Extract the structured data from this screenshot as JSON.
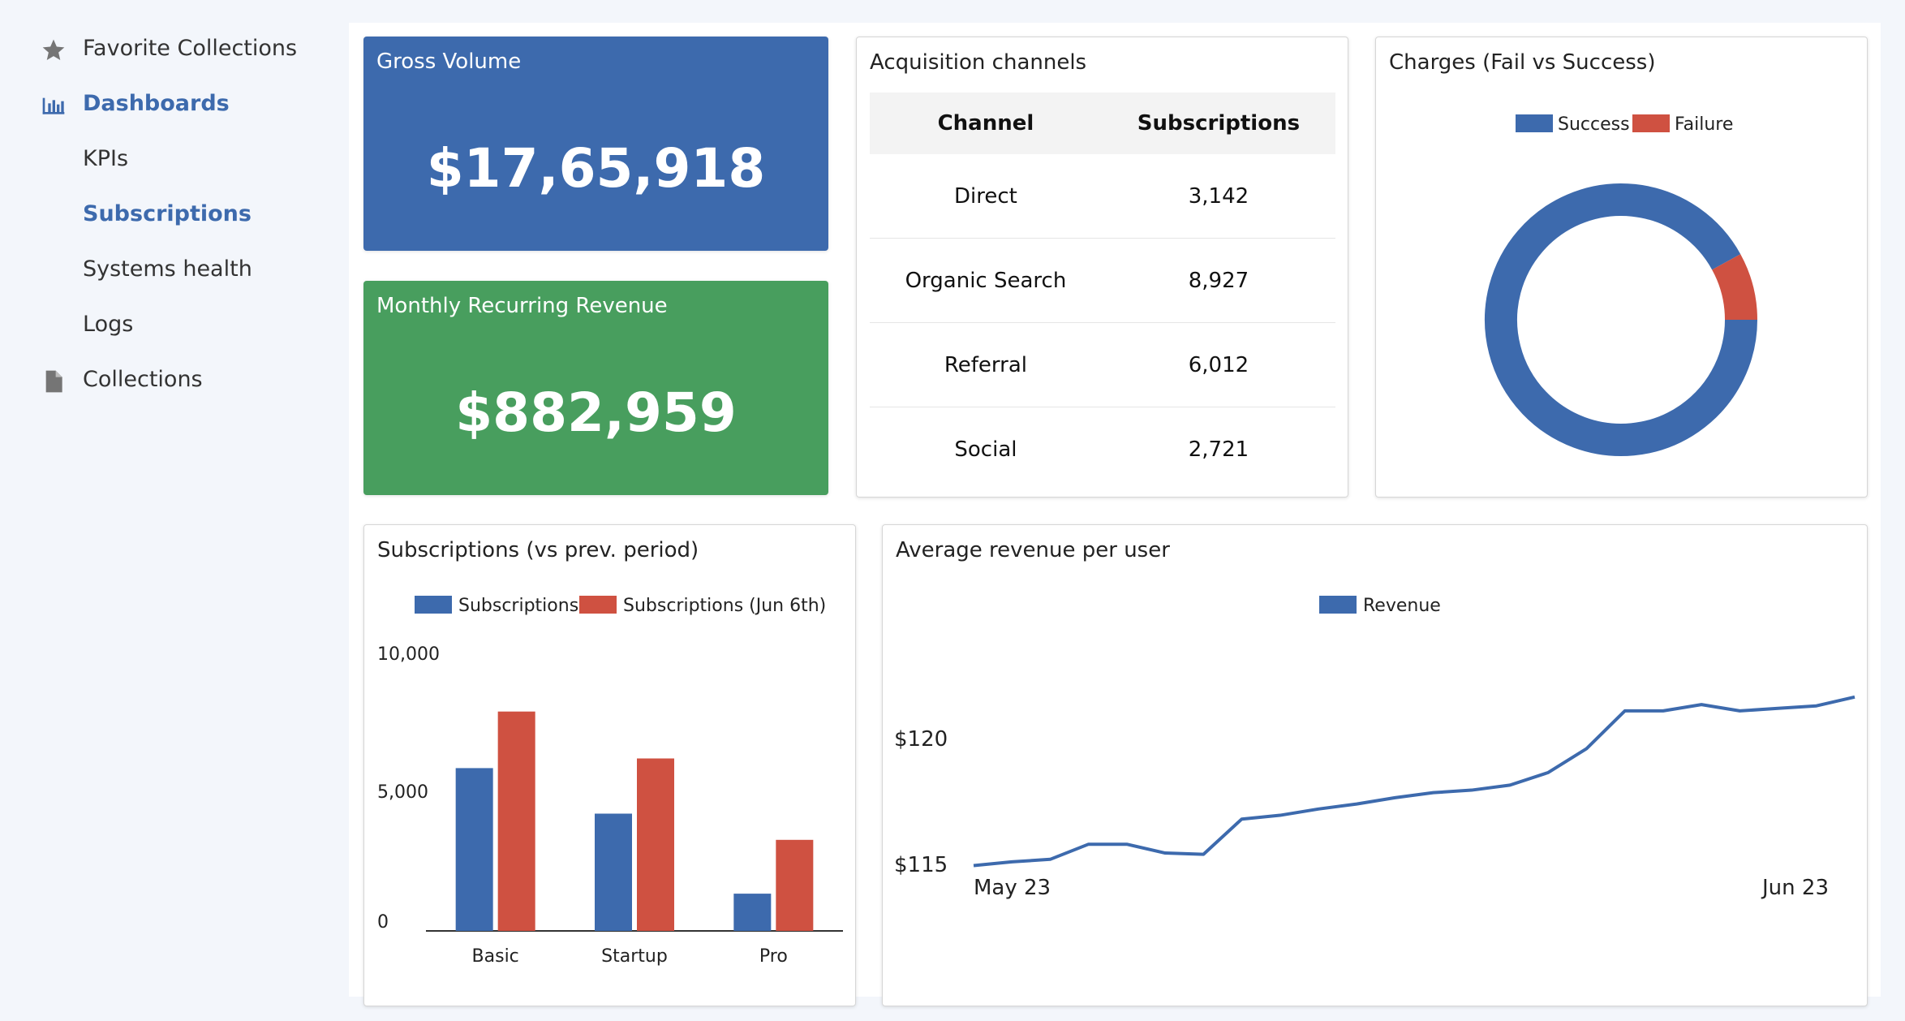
{
  "sidebar": {
    "items": [
      {
        "label": "Favorite Collections",
        "icon": "star-icon"
      },
      {
        "label": "Dashboards",
        "icon": "bar-chart-icon"
      },
      {
        "label": "KPIs"
      },
      {
        "label": "Subscriptions"
      },
      {
        "label": "Systems health"
      },
      {
        "label": "Logs"
      },
      {
        "label": "Collections",
        "icon": "document-icon"
      }
    ]
  },
  "cards": {
    "gross_volume": {
      "title": "Gross Volume",
      "value": "$17,65,918",
      "color": "#3d6aad"
    },
    "mrr": {
      "title": "Monthly Recurring Revenue",
      "value": "$882,959",
      "color": "#489e5e"
    },
    "acquisition": {
      "title": "Acquisition channels",
      "columns": [
        "Channel",
        "Subscriptions"
      ],
      "rows": [
        [
          "Direct",
          "3,142"
        ],
        [
          "Organic Search",
          "8,927"
        ],
        [
          "Referral",
          "6,012"
        ],
        [
          "Social",
          "2,721"
        ]
      ]
    },
    "charges": {
      "title": "Charges (Fail vs Success)"
    },
    "subscriptions": {
      "title": "Subscriptions (vs prev. period)"
    },
    "arpu": {
      "title": "Average revenue per user"
    }
  },
  "colors": {
    "blue": "#3d6aad",
    "red": "#cf5141",
    "green": "#489e5e"
  },
  "chart_data": [
    {
      "type": "pie",
      "title": "Charges (Fail vs Success)",
      "donut": true,
      "legend_position": "top",
      "series": [
        {
          "name": "Success",
          "value": 92
        },
        {
          "name": "Failure",
          "value": 8
        }
      ]
    },
    {
      "type": "bar",
      "title": "Subscriptions (vs prev. period)",
      "categories": [
        "Basic",
        "Startup",
        "Pro"
      ],
      "series": [
        {
          "name": "Subscriptions",
          "values": [
            5900,
            4250,
            1350
          ]
        },
        {
          "name": "Subscriptions (Jun 6th)",
          "values": [
            7950,
            6250,
            3300
          ]
        }
      ],
      "ylim": [
        0,
        10000
      ],
      "yticks": [
        "0",
        "5,000",
        "10,000"
      ],
      "legend_position": "top"
    },
    {
      "type": "line",
      "title": "Average revenue per user",
      "x_labels": [
        "May 23",
        "Jun 23"
      ],
      "y_ticks": [
        "$115",
        "$120"
      ],
      "series": [
        {
          "name": "Revenue",
          "values": [
            114.95,
            115.1,
            115.2,
            115.8,
            115.8,
            115.45,
            115.4,
            116.8,
            116.95,
            117.2,
            117.4,
            117.65,
            117.85,
            117.95,
            118.15,
            118.65,
            119.6,
            121.1,
            121.1,
            121.35,
            121.1,
            121.2,
            121.3,
            121.65
          ]
        }
      ],
      "ylim": [
        114,
        124
      ],
      "legend_position": "top"
    }
  ]
}
